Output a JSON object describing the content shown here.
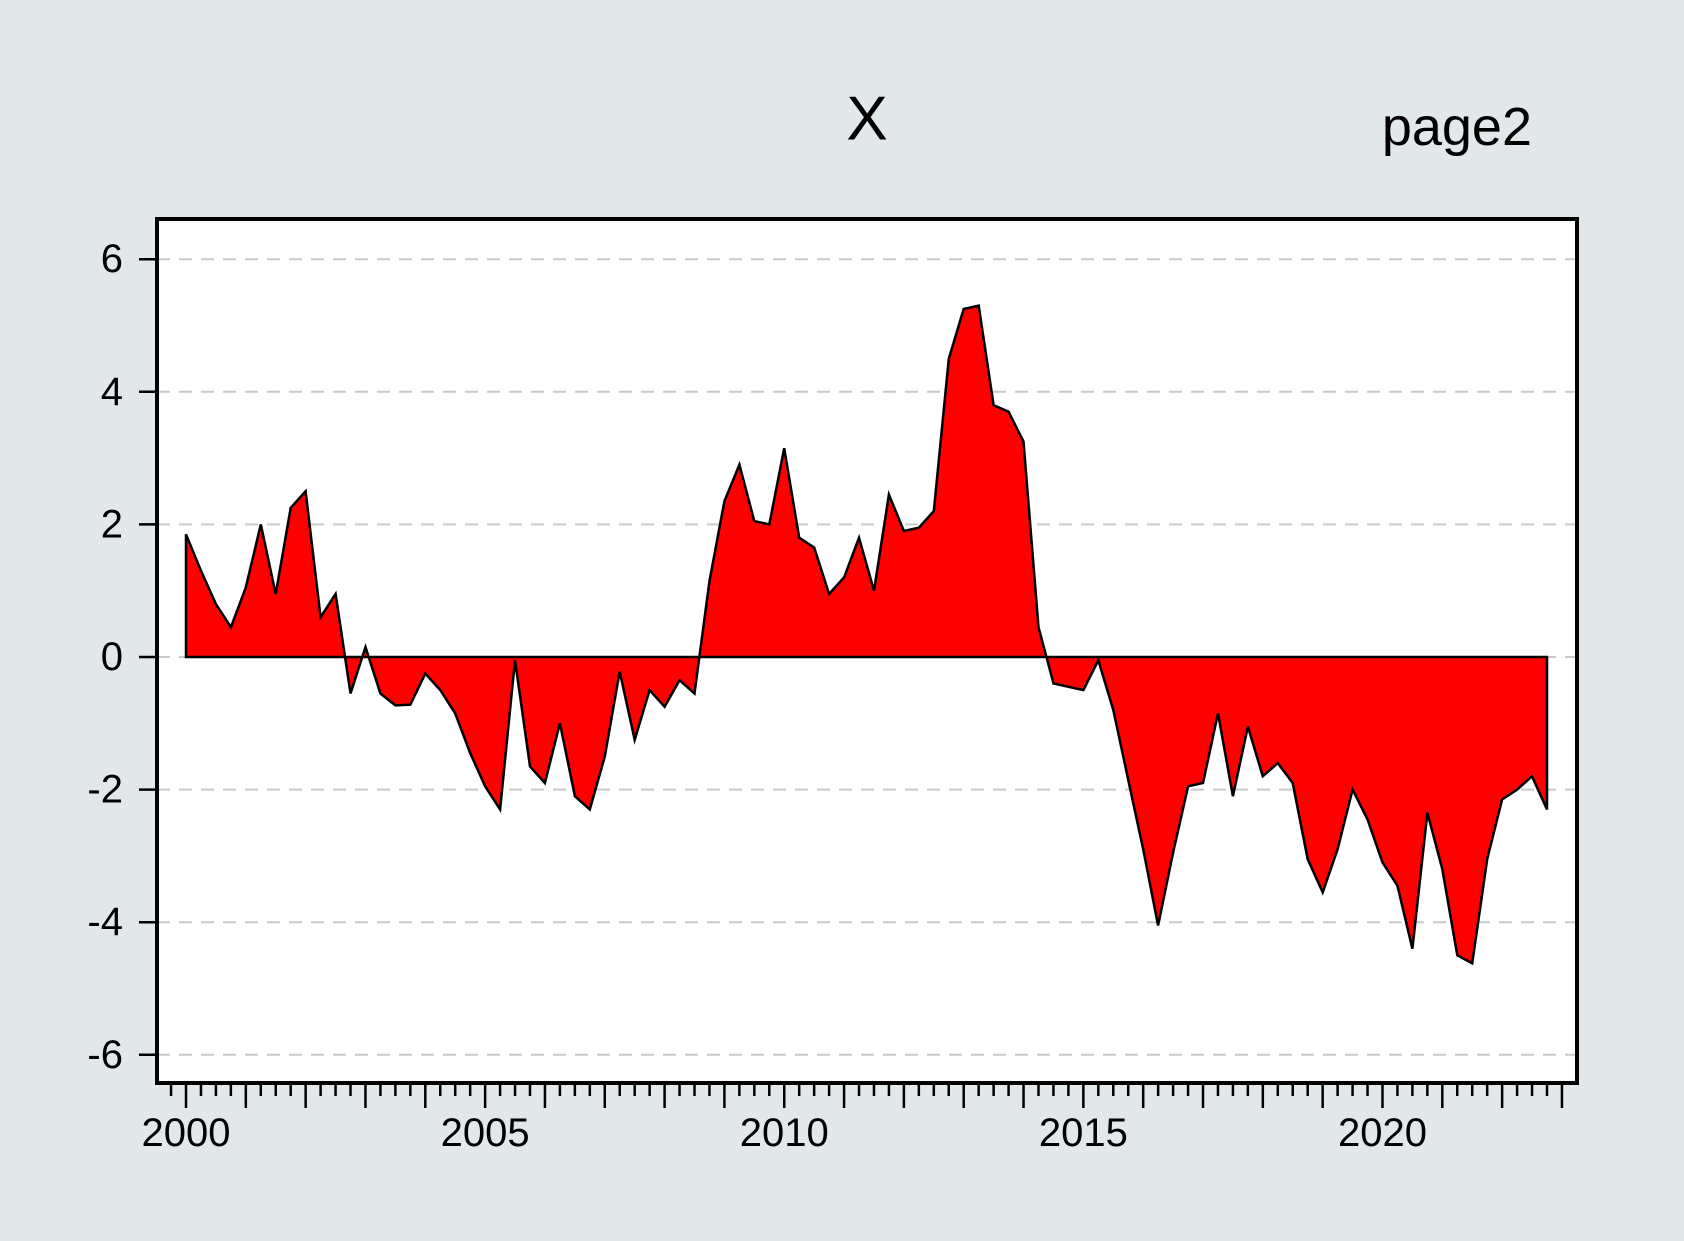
{
  "title": "X",
  "page_label": "page2",
  "colors": {
    "background": "#e2e7ea",
    "plot_background": "#ffffff",
    "series_fill": "#fe0000",
    "series_outline": "#000000",
    "gridline": "#c9c9c9",
    "frame": "#000000",
    "text": "#000000"
  },
  "chart_data": {
    "type": "area",
    "title": "X",
    "subtitle": "page2",
    "xlabel": "",
    "ylabel": "",
    "frequency": "quarterly",
    "x_start": "2000Q1",
    "x_end": "2022Q4",
    "ylim": [
      -6.4,
      6.6
    ],
    "grid": "horizontal-dashed",
    "legend_position": "none",
    "y_ticks": [
      -6,
      -4,
      -2,
      0,
      2,
      4,
      6
    ],
    "y_tick_labels": [
      "-6",
      "-4",
      "-2",
      "0",
      "2",
      "4",
      "6"
    ],
    "x_tick_years": [
      2000,
      2005,
      2010,
      2015,
      2020
    ],
    "x_tick_labels": [
      "2000",
      "2005",
      "2010",
      "2015",
      "2020"
    ],
    "x": [
      "2000Q1",
      "2000Q2",
      "2000Q3",
      "2000Q4",
      "2001Q1",
      "2001Q2",
      "2001Q3",
      "2001Q4",
      "2002Q1",
      "2002Q2",
      "2002Q3",
      "2002Q4",
      "2003Q1",
      "2003Q2",
      "2003Q3",
      "2003Q4",
      "2004Q1",
      "2004Q2",
      "2004Q3",
      "2004Q4",
      "2005Q1",
      "2005Q2",
      "2005Q3",
      "2005Q4",
      "2006Q1",
      "2006Q2",
      "2006Q3",
      "2006Q4",
      "2007Q1",
      "2007Q2",
      "2007Q3",
      "2007Q4",
      "2008Q1",
      "2008Q2",
      "2008Q3",
      "2008Q4",
      "2009Q1",
      "2009Q2",
      "2009Q3",
      "2009Q4",
      "2010Q1",
      "2010Q2",
      "2010Q3",
      "2010Q4",
      "2011Q1",
      "2011Q2",
      "2011Q3",
      "2011Q4",
      "2012Q1",
      "2012Q2",
      "2012Q3",
      "2012Q4",
      "2013Q1",
      "2013Q2",
      "2013Q3",
      "2013Q4",
      "2014Q1",
      "2014Q2",
      "2014Q3",
      "2014Q4",
      "2015Q1",
      "2015Q2",
      "2015Q3",
      "2015Q4",
      "2016Q1",
      "2016Q2",
      "2016Q3",
      "2016Q4",
      "2017Q1",
      "2017Q2",
      "2017Q3",
      "2017Q4",
      "2018Q1",
      "2018Q2",
      "2018Q3",
      "2018Q4",
      "2019Q1",
      "2019Q2",
      "2019Q3",
      "2019Q4",
      "2020Q1",
      "2020Q2",
      "2020Q3",
      "2020Q4",
      "2021Q1",
      "2021Q2",
      "2021Q3",
      "2021Q4",
      "2022Q1",
      "2022Q2",
      "2022Q3",
      "2022Q4"
    ],
    "values": [
      1.85,
      1.3,
      0.8,
      0.45,
      1.05,
      2.0,
      0.95,
      2.25,
      2.5,
      0.6,
      0.95,
      -0.55,
      0.15,
      -0.55,
      -0.73,
      -0.72,
      -0.25,
      -0.5,
      -0.85,
      -1.45,
      -1.95,
      -2.3,
      -0.05,
      -1.65,
      -1.9,
      -1.0,
      -2.1,
      -2.3,
      -1.5,
      -0.22,
      -1.25,
      -0.5,
      -0.75,
      -0.35,
      -0.55,
      1.15,
      2.35,
      2.9,
      2.05,
      2.0,
      3.15,
      1.8,
      1.65,
      0.95,
      1.2,
      1.8,
      1.0,
      2.45,
      1.9,
      1.95,
      2.2,
      4.5,
      5.25,
      5.3,
      3.8,
      3.7,
      3.25,
      0.45,
      -0.4,
      -0.45,
      -0.5,
      -0.05,
      -0.8,
      -1.85,
      -2.9,
      -4.05,
      -2.95,
      -1.95,
      -1.9,
      -0.85,
      -2.1,
      -1.05,
      -1.8,
      -1.6,
      -1.9,
      -3.05,
      -3.55,
      -2.9,
      -2.0,
      -2.45,
      -3.1,
      -3.45,
      -4.4,
      -2.35,
      -3.2,
      -4.5,
      -4.62,
      -3.05,
      -2.15,
      -2.0,
      -1.8,
      -2.3
    ]
  }
}
